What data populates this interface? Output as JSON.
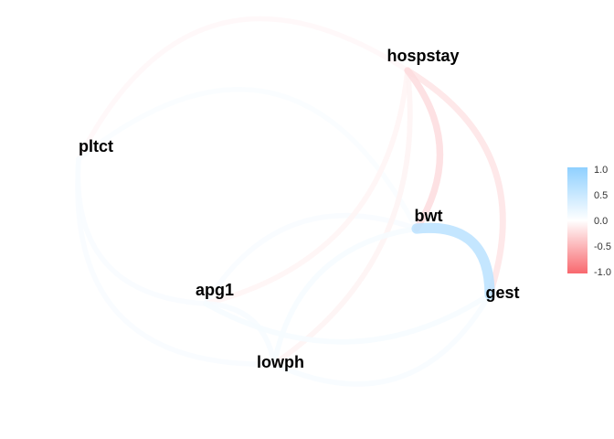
{
  "chart_data": {
    "type": "network",
    "nodes": [
      "hospstay",
      "pltct",
      "bwt",
      "apg1",
      "gest",
      "lowph"
    ],
    "edges": [
      {
        "from": "bwt",
        "to": "gest",
        "r": 0.62
      },
      {
        "from": "hospstay",
        "to": "bwt",
        "r": -0.23
      },
      {
        "from": "hospstay",
        "to": "gest",
        "r": -0.18
      },
      {
        "from": "hospstay",
        "to": "lowph",
        "r": -0.08
      },
      {
        "from": "hospstay",
        "to": "apg1",
        "r": -0.07
      },
      {
        "from": "hospstay",
        "to": "pltct",
        "r": -0.05
      },
      {
        "from": "pltct",
        "to": "bwt",
        "r": 0.05
      },
      {
        "from": "pltct",
        "to": "apg1",
        "r": 0.06
      },
      {
        "from": "pltct",
        "to": "lowph",
        "r": 0.06
      },
      {
        "from": "bwt",
        "to": "lowph",
        "r": 0.08
      },
      {
        "from": "bwt",
        "to": "apg1",
        "r": 0.06
      },
      {
        "from": "gest",
        "to": "apg1",
        "r": 0.08
      },
      {
        "from": "gest",
        "to": "lowph",
        "r": 0.07
      },
      {
        "from": "apg1",
        "to": "lowph",
        "r": 0.07
      }
    ],
    "legend": {
      "position": "right",
      "ticks": [
        "1.0",
        "0.5",
        "0.0",
        "-0.5",
        "-1.0"
      ],
      "range": [
        -1,
        1
      ],
      "colors": {
        "positive": "#8fd0ff",
        "zero": "#ffffff",
        "negative": "#f8686e"
      }
    }
  }
}
